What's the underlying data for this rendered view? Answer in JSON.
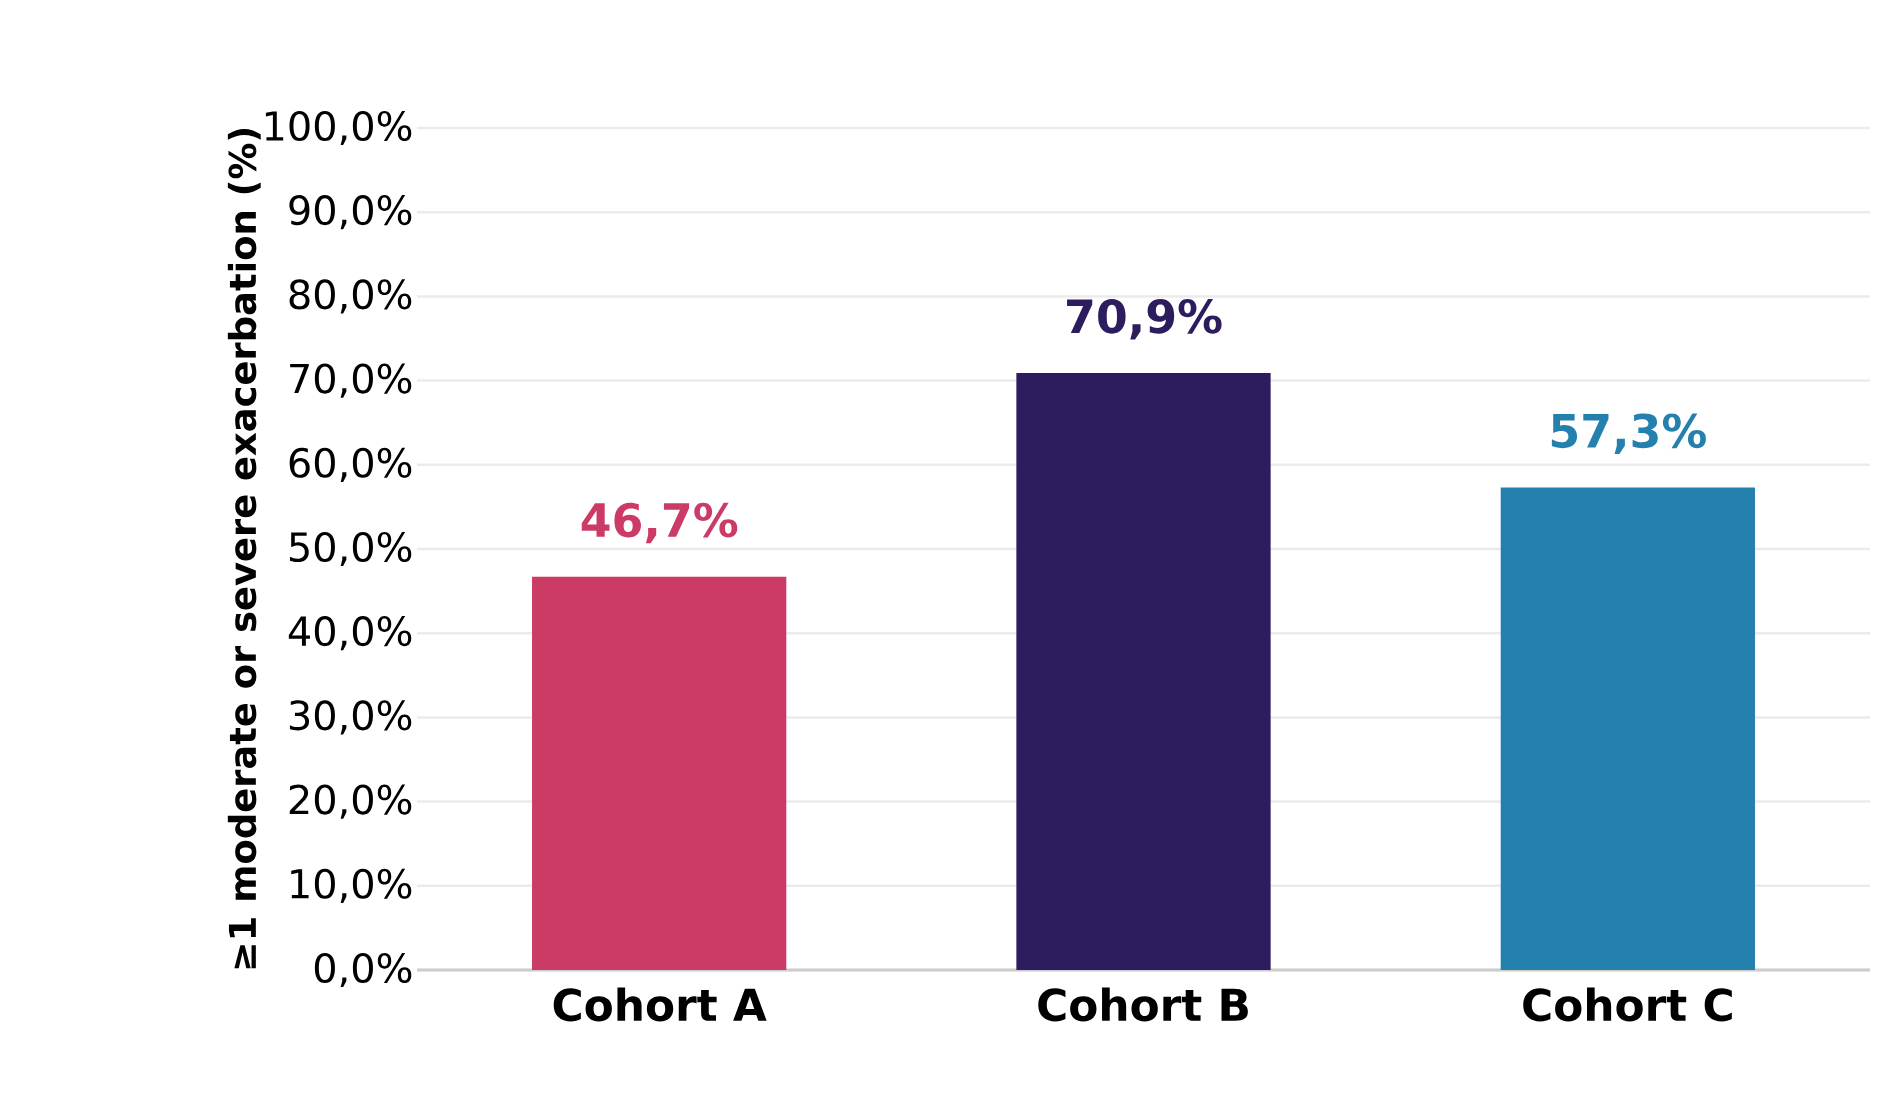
{
  "chart_data": {
    "type": "bar",
    "ylabel": "≥1 moderate or severe exacerbation (%)",
    "categories": [
      "Cohort A",
      "Cohort B",
      "Cohort C"
    ],
    "values": [
      46.7,
      70.9,
      57.3
    ],
    "colors": [
      "#cc3a66",
      "#2e1d5e",
      "#2481ae"
    ],
    "value_labels": [
      "46,7%",
      "70,9%",
      "57,3%"
    ],
    "ylim": [
      0,
      100
    ],
    "yticks": [
      {
        "value": 0,
        "label": "0,0%"
      },
      {
        "value": 10,
        "label": "10,0%"
      },
      {
        "value": 20,
        "label": "20,0%"
      },
      {
        "value": 30,
        "label": "30,0%"
      },
      {
        "value": 40,
        "label": "40,0%"
      },
      {
        "value": 50,
        "label": "50,0%"
      },
      {
        "value": 60,
        "label": "60,0%"
      },
      {
        "value": 70,
        "label": "70,0%"
      },
      {
        "value": 80,
        "label": "80,0%"
      },
      {
        "value": 90,
        "label": "90,0%"
      },
      {
        "value": 100,
        "label": "100,0%"
      }
    ],
    "grid": "y"
  }
}
